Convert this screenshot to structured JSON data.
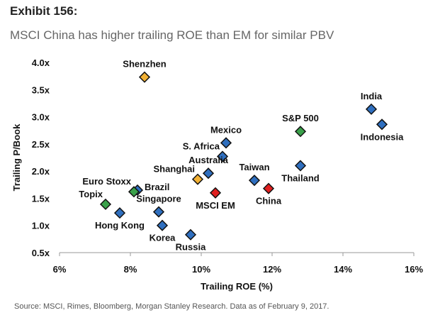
{
  "header": {
    "exhibit": "Exhibit 156:",
    "subtitle": "MSCI China has higher trailing ROE than EM for similar PBV"
  },
  "footer": {
    "source": "Source: MSCI, Rimes, Bloomberg, Morgan Stanley Research. Data as of February 9, 2017."
  },
  "colors": {
    "blue": "#2f6fbf",
    "green": "#3aa14a",
    "orange": "#f2b134",
    "red": "#e02020",
    "outline": "#111111"
  },
  "chart_data": {
    "type": "scatter",
    "title": "MSCI China has higher trailing ROE than EM for similar PBV",
    "xlabel": "Trailing ROE (%)",
    "ylabel": "Trailing P/Book",
    "xlim": [
      6,
      16
    ],
    "ylim": [
      0.5,
      4.0
    ],
    "x_ticks": [
      6,
      8,
      10,
      12,
      14,
      16
    ],
    "x_tick_labels": [
      "6%",
      "8%",
      "10%",
      "12%",
      "14%",
      "16%"
    ],
    "y_ticks": [
      0.5,
      1.0,
      1.5,
      2.0,
      2.5,
      3.0,
      3.5,
      4.0
    ],
    "y_tick_labels": [
      "0.5x",
      "1.0x",
      "1.5x",
      "2.0x",
      "2.5x",
      "3.0x",
      "3.5x",
      "4.0x"
    ],
    "grid": false,
    "points": [
      {
        "name": "Shenzhen",
        "x": 8.4,
        "y": 3.73,
        "color": "orange",
        "label_pos": "above"
      },
      {
        "name": "India",
        "x": 14.8,
        "y": 3.14,
        "color": "blue",
        "label_pos": "above"
      },
      {
        "name": "Indonesia",
        "x": 15.1,
        "y": 2.86,
        "color": "blue",
        "label_pos": "below"
      },
      {
        "name": "S&P 500",
        "x": 12.8,
        "y": 2.73,
        "color": "green",
        "label_pos": "above"
      },
      {
        "name": "Mexico",
        "x": 10.7,
        "y": 2.52,
        "color": "blue",
        "label_pos": "above"
      },
      {
        "name": "S. Africa",
        "x": 10.6,
        "y": 2.27,
        "color": "blue",
        "label_pos": "above-left"
      },
      {
        "name": "Thailand",
        "x": 12.8,
        "y": 2.1,
        "color": "blue",
        "label_pos": "below"
      },
      {
        "name": "Australia",
        "x": 10.2,
        "y": 1.96,
        "color": "blue",
        "label_pos": "above"
      },
      {
        "name": "Shanghai",
        "x": 9.9,
        "y": 1.85,
        "color": "orange",
        "label_pos": "above-left"
      },
      {
        "name": "Taiwan",
        "x": 11.5,
        "y": 1.83,
        "color": "blue",
        "label_pos": "above"
      },
      {
        "name": "China",
        "x": 11.9,
        "y": 1.68,
        "color": "red",
        "label_pos": "below"
      },
      {
        "name": "MSCI EM",
        "x": 10.4,
        "y": 1.6,
        "color": "red",
        "label_pos": "below"
      },
      {
        "name": "Brazil",
        "x": 8.2,
        "y": 1.65,
        "color": "blue",
        "label_pos": "right"
      },
      {
        "name": "Euro Stoxx",
        "x": 8.1,
        "y": 1.62,
        "color": "green",
        "label_pos": "above-left"
      },
      {
        "name": "Topix",
        "x": 7.3,
        "y": 1.39,
        "color": "green",
        "label_pos": "above-left"
      },
      {
        "name": "Singapore",
        "x": 8.8,
        "y": 1.25,
        "color": "blue",
        "label_pos": "above"
      },
      {
        "name": "Hong Kong",
        "x": 7.7,
        "y": 1.23,
        "color": "blue",
        "label_pos": "below"
      },
      {
        "name": "Korea",
        "x": 8.9,
        "y": 1.0,
        "color": "blue",
        "label_pos": "below"
      },
      {
        "name": "Russia",
        "x": 9.7,
        "y": 0.83,
        "color": "blue",
        "label_pos": "below"
      }
    ]
  }
}
